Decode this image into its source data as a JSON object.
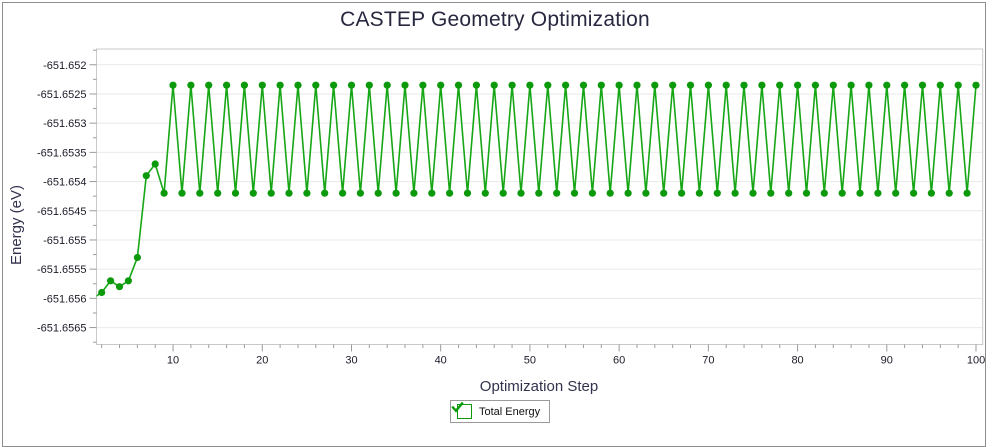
{
  "title": "CASTEP Geometry Optimization",
  "legend": {
    "label": "Total Energy",
    "checked": true,
    "check_color": "#0b9b0b"
  },
  "colors": {
    "line": "#16a616",
    "marker": "#0c990c",
    "grid": "#e9e9e9",
    "plot_border": "#c9c9c9",
    "tick": "#9a9a9a",
    "tick_label": "#1b1b28",
    "axis_title": "#32324e",
    "title": "#27273f"
  },
  "chart_data": {
    "type": "line",
    "title": "CASTEP Geometry Optimization",
    "xlabel": "Optimization Step",
    "ylabel": "Energy (eV)",
    "legend_position": "bottom-center",
    "grid": "horizontal-only",
    "xlim": [
      1.42,
      100.75
    ],
    "ylim": [
      -651.65679,
      -651.65173
    ],
    "x_start": 1,
    "x_step_increment": 1,
    "x_major_ticks": [
      10,
      20,
      30,
      40,
      50,
      60,
      70,
      80,
      90,
      100
    ],
    "x_minor_ticks": [
      2,
      4,
      6,
      8,
      12,
      14,
      16,
      18,
      22,
      24,
      26,
      28,
      32,
      34,
      36,
      38,
      42,
      44,
      46,
      48,
      52,
      54,
      56,
      58,
      62,
      64,
      66,
      68,
      72,
      74,
      76,
      78,
      82,
      84,
      86,
      88,
      92,
      94,
      96,
      98
    ],
    "y_tick_values": [
      -651.652,
      -651.6525,
      -651.653,
      -651.6535,
      -651.654,
      -651.6545,
      -651.655,
      -651.6555,
      -651.656,
      -651.6565
    ],
    "y_tick_labels": [
      "-651.652",
      "-651.6525",
      "-651.653",
      "-651.6535",
      "-651.654",
      "-651.6545",
      "-651.655",
      "-651.6555",
      "-651.656",
      "-651.6565"
    ],
    "y_minor_tick_values": [
      -651.65175,
      -651.65225,
      -651.65275,
      -651.65325,
      -651.65375,
      -651.65425,
      -651.65475,
      -651.65525,
      -651.65575,
      -651.65625,
      -651.65675
    ],
    "series": [
      {
        "name": "Total Energy",
        "values": [
          -651.656,
          -651.6559,
          -651.6557,
          -651.6558,
          -651.6557,
          -651.6553,
          -651.6539,
          -651.6537,
          -651.6542,
          -651.65235,
          -651.6542,
          -651.65235,
          -651.6542,
          -651.65235,
          -651.6542,
          -651.65235,
          -651.6542,
          -651.65235,
          -651.6542,
          -651.65235,
          -651.6542,
          -651.65235,
          -651.6542,
          -651.65235,
          -651.6542,
          -651.65235,
          -651.6542,
          -651.65235,
          -651.6542,
          -651.65235,
          -651.6542,
          -651.65235,
          -651.6542,
          -651.65235,
          -651.6542,
          -651.65235,
          -651.6542,
          -651.65235,
          -651.6542,
          -651.65235,
          -651.6542,
          -651.65235,
          -651.6542,
          -651.65235,
          -651.6542,
          -651.65235,
          -651.6542,
          -651.65235,
          -651.6542,
          -651.65235,
          -651.6542,
          -651.65235,
          -651.6542,
          -651.65235,
          -651.6542,
          -651.65235,
          -651.6542,
          -651.65235,
          -651.6542,
          -651.65235,
          -651.6542,
          -651.65235,
          -651.6542,
          -651.65235,
          -651.6542,
          -651.65235,
          -651.6542,
          -651.65235,
          -651.6542,
          -651.65235,
          -651.6542,
          -651.65235,
          -651.6542,
          -651.65235,
          -651.6542,
          -651.65235,
          -651.6542,
          -651.65235,
          -651.6542,
          -651.65235,
          -651.6542,
          -651.65235,
          -651.6542,
          -651.65235,
          -651.6542,
          -651.65235,
          -651.6542,
          -651.65235,
          -651.6542,
          -651.65235,
          -651.6542,
          -651.65235,
          -651.6542,
          -651.65235,
          -651.6542,
          -651.65235,
          -651.6542,
          -651.65235,
          -651.6542,
          -651.65235
        ]
      }
    ]
  }
}
